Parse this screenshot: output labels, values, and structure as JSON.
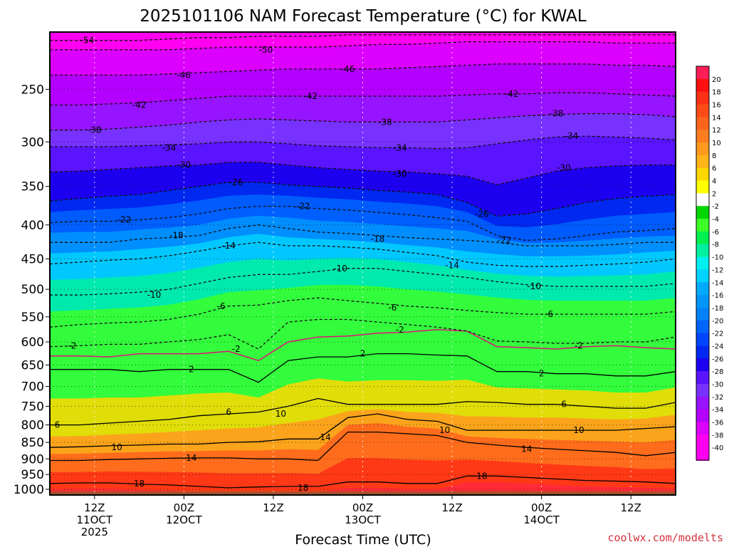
{
  "chart_data": {
    "type": "heatmap",
    "title": "2025101106 NAM Forecast Temperature (°C) for KWAL",
    "xlabel": "Forecast Time (UTC)",
    "ylabel": "",
    "y_scale": "log-pressure",
    "y_inverted": true,
    "ylim": [
      1020,
      205
    ],
    "y_ticks": [
      250,
      300,
      350,
      400,
      450,
      500,
      550,
      600,
      650,
      700,
      750,
      800,
      850,
      900,
      950,
      1000
    ],
    "x_unit": "forecast hour",
    "xlim": [
      0,
      84
    ],
    "x_ticks": [
      {
        "x": 6,
        "lines": [
          "12Z",
          "11OCT",
          "2025"
        ]
      },
      {
        "x": 18,
        "lines": [
          "00Z",
          "12OCT"
        ]
      },
      {
        "x": 30,
        "lines": [
          "12Z"
        ]
      },
      {
        "x": 42,
        "lines": [
          "00Z",
          "13OCT"
        ]
      },
      {
        "x": 54,
        "lines": [
          "12Z"
        ]
      },
      {
        "x": 66,
        "lines": [
          "00Z",
          "14OCT"
        ]
      },
      {
        "x": 78,
        "lines": [
          "12Z"
        ]
      }
    ],
    "grid": true,
    "colorbar": {
      "placement": "right",
      "levels": [
        20,
        18,
        16,
        14,
        12,
        10,
        8,
        6,
        4,
        2,
        -2,
        -4,
        -6,
        -8,
        -10,
        -12,
        -14,
        -16,
        -18,
        -20,
        -22,
        -24,
        -26,
        -28,
        -30,
        -32,
        -34,
        -36,
        -38,
        -40
      ],
      "colors": [
        "#ff1e56",
        "#ff0f0f",
        "#ff3015",
        "#ff4c17",
        "#ff641c",
        "#ff7d1e",
        "#ff9a1e",
        "#ffb419",
        "#ffd700",
        "#ffff00",
        "#ffffff",
        "#00d700",
        "#3cff28",
        "#00f050",
        "#00f0a0",
        "#00f0f0",
        "#00d2ff",
        "#00aaff",
        "#0096ff",
        "#0082ff",
        "#0064ff",
        "#0046ff",
        "#0028f0",
        "#1e00f0",
        "#5a14ff",
        "#7832ff",
        "#9614ff",
        "#b400ff",
        "#dc00ff",
        "#ff00f0"
      ]
    },
    "field_colors": {
      "t20": "#ff1e56",
      "t18": "#ff0f0f",
      "t16": "#ff3015",
      "t14": "#ff4c17",
      "t12": "#ff641c",
      "t10": "#ff7d1e",
      "t8": "#ff9a1e",
      "t6": "#ffb419",
      "t4": "#ffd700",
      "t2": "#ffff00",
      "t0": "#ffffff",
      "m4": "#00d700",
      "m6": "#3cff28",
      "m8": "#00f050",
      "m10": "#00f0a0",
      "m12": "#00f0f0",
      "m14": "#00d2ff",
      "m16": "#00aaff",
      "m18": "#0096ff",
      "m20": "#0082ff",
      "m22": "#0064ff",
      "m24": "#0046ff",
      "m26": "#0028f0",
      "m28": "#1e00f0",
      "m30": "#5a14ff",
      "m32": "#7832ff",
      "m34": "#9614ff",
      "m36": "#b400ff",
      "m38": "#dc00ff",
      "m40": "#ff00f0",
      "ground": "#a0522d",
      "zero_line": "#e0107a"
    },
    "isotherms": [
      {
        "t": 18,
        "style": "solid",
        "labels": [
          {
            "x": 12,
            "p": 980
          },
          {
            "x": 34,
            "p": 995
          },
          {
            "x": 58,
            "p": 955
          }
        ],
        "p": [
          980,
          978,
          978,
          982,
          985,
          990,
          995,
          992,
          990,
          990,
          975,
          975,
          980,
          980,
          955,
          955,
          960,
          965,
          970,
          972,
          975,
          980
        ]
      },
      {
        "t": 14,
        "style": "solid",
        "labels": [
          {
            "x": 19,
            "p": 897
          },
          {
            "x": 37,
            "p": 835
          },
          {
            "x": 64,
            "p": 870
          }
        ],
        "p": [
          905,
          905,
          902,
          900,
          898,
          897,
          897,
          900,
          900,
          905,
          820,
          820,
          825,
          830,
          850,
          858,
          865,
          870,
          875,
          880,
          890,
          880
        ]
      },
      {
        "t": 10,
        "style": "solid",
        "labels": [
          {
            "x": 9,
            "p": 865
          },
          {
            "x": 31,
            "p": 770
          },
          {
            "x": 53,
            "p": 815
          },
          {
            "x": 71,
            "p": 815
          }
        ],
        "p": [
          865,
          863,
          860,
          858,
          855,
          855,
          850,
          848,
          840,
          840,
          780,
          770,
          785,
          790,
          815,
          815,
          815,
          815,
          815,
          815,
          810,
          805
        ]
      },
      {
        "t": 6,
        "style": "solid",
        "labels": [
          {
            "x": 1,
            "p": 800
          },
          {
            "x": 24,
            "p": 765
          },
          {
            "x": 69,
            "p": 745
          }
        ],
        "p": [
          800,
          800,
          795,
          790,
          785,
          775,
          770,
          765,
          750,
          730,
          745,
          745,
          745,
          745,
          738,
          740,
          745,
          745,
          750,
          755,
          755,
          740
        ]
      },
      {
        "t": 2,
        "style": "solid",
        "labels": [
          {
            "x": 19,
            "p": 660
          },
          {
            "x": 42,
            "p": 625
          },
          {
            "x": 66,
            "p": 670
          }
        ],
        "p": [
          660,
          660,
          660,
          665,
          660,
          660,
          660,
          690,
          640,
          632,
          632,
          625,
          625,
          628,
          630,
          665,
          665,
          670,
          670,
          675,
          675,
          665
        ]
      },
      {
        "t": 0,
        "style": "zero",
        "labels": [],
        "p": [
          630,
          630,
          632,
          625,
          625,
          625,
          620,
          640,
          600,
          590,
          588,
          582,
          580,
          575,
          578,
          610,
          612,
          615,
          610,
          608,
          612,
          615
        ]
      },
      {
        "t": -2,
        "style": "dashed",
        "labels": [
          {
            "x": 3,
            "p": 608
          },
          {
            "x": 25,
            "p": 615
          },
          {
            "x": 47,
            "p": 575
          },
          {
            "x": 71,
            "p": 608
          }
        ],
        "p": [
          610,
          608,
          605,
          605,
          600,
          595,
          585,
          615,
          560,
          555,
          555,
          560,
          565,
          570,
          578,
          598,
          600,
          603,
          603,
          600,
          600,
          590
        ]
      },
      {
        "t": -6,
        "style": "dashed",
        "labels": [
          {
            "x": 23,
            "p": 530
          },
          {
            "x": 46,
            "p": 533
          },
          {
            "x": 67,
            "p": 545
          }
        ],
        "p": [
          570,
          565,
          562,
          560,
          555,
          545,
          530,
          528,
          520,
          515,
          520,
          525,
          530,
          533,
          538,
          542,
          545,
          545,
          545,
          545,
          545,
          540
        ]
      },
      {
        "t": -10,
        "style": "dashed",
        "labels": [
          {
            "x": 14,
            "p": 510
          },
          {
            "x": 39,
            "p": 465
          },
          {
            "x": 65,
            "p": 495
          }
        ],
        "p": [
          510,
          510,
          508,
          505,
          500,
          490,
          480,
          475,
          475,
          470,
          465,
          465,
          470,
          475,
          480,
          487,
          492,
          495,
          495,
          495,
          495,
          490
        ]
      },
      {
        "t": -14,
        "style": "dashed",
        "labels": [
          {
            "x": 24,
            "p": 430
          },
          {
            "x": 54,
            "p": 460
          }
        ],
        "p": [
          458,
          455,
          452,
          450,
          445,
          438,
          430,
          425,
          430,
          430,
          432,
          435,
          440,
          445,
          455,
          460,
          462,
          462,
          460,
          458,
          455,
          450
        ]
      },
      {
        "t": -18,
        "style": "dashed",
        "labels": [
          {
            "x": 17,
            "p": 415
          },
          {
            "x": 44,
            "p": 420
          }
        ],
        "p": [
          425,
          425,
          425,
          420,
          418,
          415,
          405,
          400,
          405,
          410,
          412,
          415,
          418,
          420,
          422,
          425,
          430,
          430,
          430,
          428,
          425,
          425
        ]
      },
      {
        "t": -22,
        "style": "dashed",
        "labels": [
          {
            "x": 10,
            "p": 393
          },
          {
            "x": 34,
            "p": 375
          },
          {
            "x": 61,
            "p": 422
          }
        ],
        "p": [
          397,
          395,
          395,
          393,
          390,
          385,
          378,
          375,
          375,
          378,
          380,
          383,
          386,
          390,
          395,
          415,
          422,
          420,
          415,
          410,
          408,
          405
        ]
      },
      {
        "t": -26,
        "style": "dashed",
        "labels": [
          {
            "x": 25,
            "p": 345
          },
          {
            "x": 58,
            "p": 385
          }
        ],
        "p": [
          368,
          365,
          362,
          360,
          355,
          350,
          345,
          345,
          348,
          350,
          352,
          355,
          357,
          360,
          370,
          388,
          385,
          378,
          370,
          365,
          362,
          360
        ]
      },
      {
        "t": -30,
        "style": "dashed",
        "labels": [
          {
            "x": 18,
            "p": 325
          },
          {
            "x": 47,
            "p": 335
          },
          {
            "x": 69,
            "p": 328
          }
        ],
        "p": [
          333,
          332,
          330,
          328,
          326,
          325,
          322,
          322,
          325,
          328,
          330,
          332,
          333,
          335,
          338,
          348,
          340,
          332,
          328,
          326,
          325,
          325
        ]
      },
      {
        "t": -34,
        "style": "dashed",
        "labels": [
          {
            "x": 16,
            "p": 306
          },
          {
            "x": 47,
            "p": 306
          },
          {
            "x": 70,
            "p": 294
          }
        ],
        "p": [
          305,
          305,
          305,
          304,
          303,
          302,
          300,
          300,
          302,
          304,
          305,
          306,
          306,
          307,
          306,
          302,
          298,
          295,
          294,
          295,
          296,
          298
        ]
      },
      {
        "t": -38,
        "style": "dashed",
        "labels": [
          {
            "x": 6,
            "p": 288
          },
          {
            "x": 45,
            "p": 280
          },
          {
            "x": 68,
            "p": 272
          }
        ],
        "p": [
          288,
          288,
          287,
          285,
          283,
          280,
          278,
          277,
          278,
          279,
          280,
          280,
          280,
          280,
          278,
          276,
          274,
          273,
          272,
          272,
          273,
          275
        ]
      },
      {
        "t": -42,
        "style": "dashed",
        "labels": [
          {
            "x": 12,
            "p": 264
          },
          {
            "x": 35,
            "p": 256
          },
          {
            "x": 62,
            "p": 254
          }
        ],
        "p": [
          264,
          264,
          263,
          262,
          260,
          258,
          256,
          256,
          256,
          256,
          256,
          256,
          256,
          256,
          255,
          254,
          254,
          253,
          253,
          254,
          255,
          256
        ]
      },
      {
        "t": -46,
        "style": "dashed",
        "labels": [
          {
            "x": 18,
            "p": 238
          },
          {
            "x": 40,
            "p": 233
          }
        ],
        "p": [
          238,
          238,
          238,
          238,
          237,
          236,
          235,
          234,
          233,
          233,
          233,
          233,
          232,
          231,
          230,
          229,
          229,
          229,
          229,
          230,
          230,
          231
        ]
      },
      {
        "t": -50,
        "style": "dashed",
        "labels": [
          {
            "x": 29,
            "p": 218
          }
        ],
        "p": [
          218,
          218,
          218,
          218,
          218,
          217,
          216,
          216,
          216,
          216,
          215,
          214,
          214,
          213,
          212,
          212,
          212,
          212,
          212,
          213,
          213,
          213
        ]
      },
      {
        "t": -54,
        "style": "dashed",
        "labels": [
          {
            "x": 5,
            "p": 211
          }
        ],
        "p": [
          211,
          211,
          211,
          211,
          210,
          209,
          209,
          208,
          208,
          208,
          207,
          207,
          207,
          207,
          207,
          207,
          207,
          207,
          207,
          207,
          207,
          207
        ]
      }
    ]
  },
  "credit": "coolwx.com/modelts"
}
